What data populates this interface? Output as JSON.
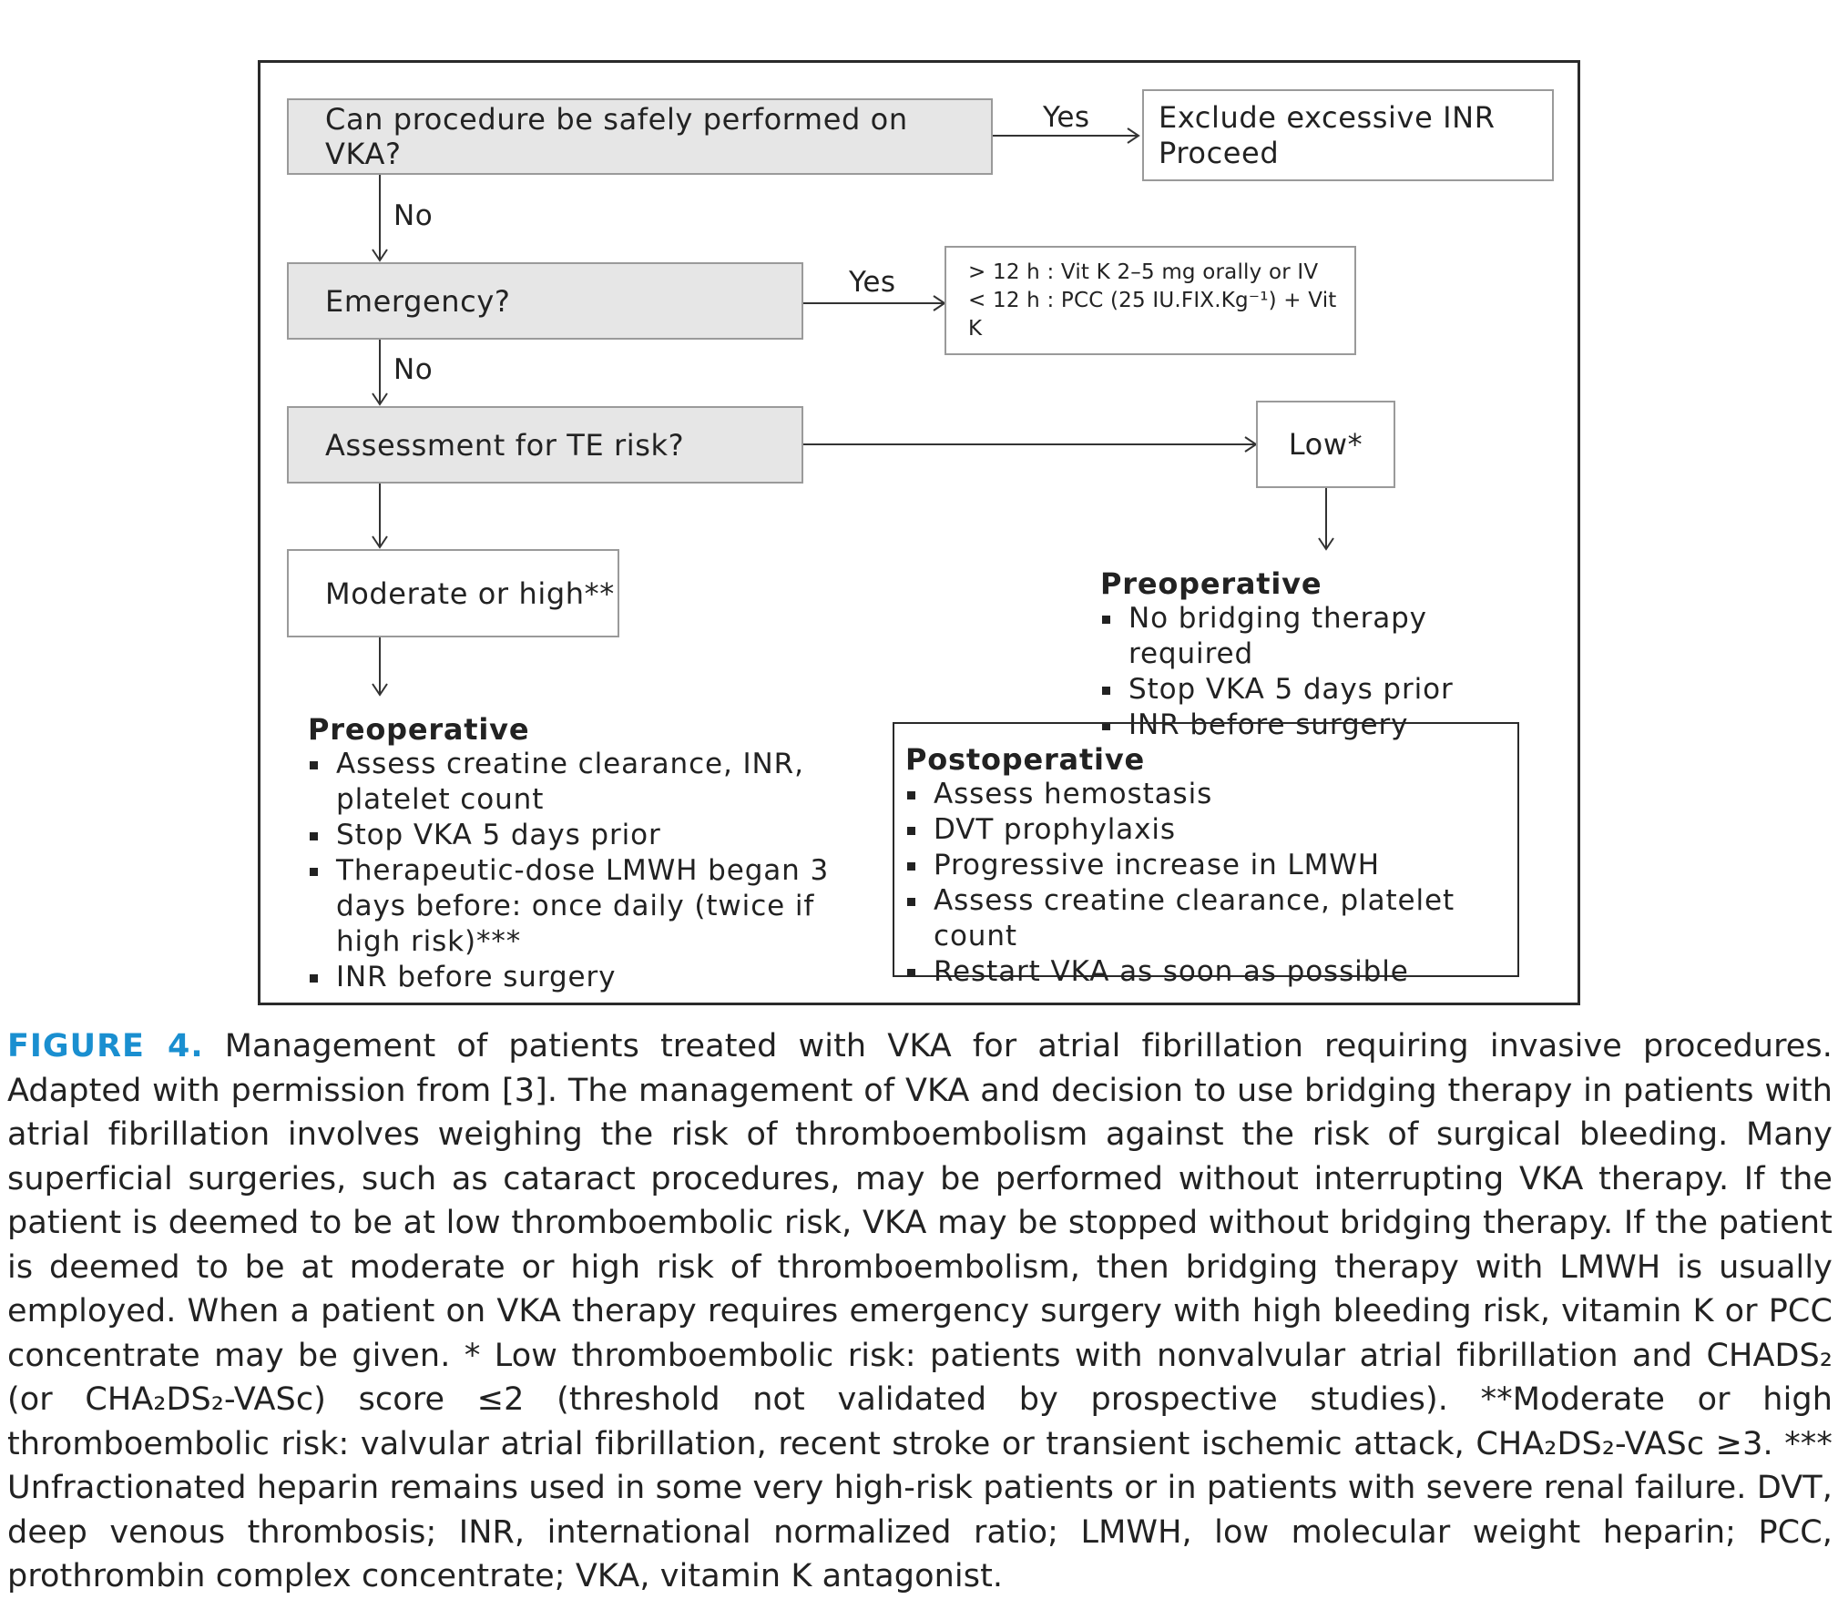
{
  "diagram": {
    "q1": "Can procedure be safely performed on VKA?",
    "q1_yes_label": "Yes",
    "q1_yes_box": [
      "Exclude excessive INR",
      "Proceed"
    ],
    "q1_no_label": "No",
    "q2": "Emergency?",
    "q2_yes_label": "Yes",
    "q2_yes_box": [
      "> 12 h : Vit K 2–5 mg orally or IV",
      "< 12 h : PCC (25 IU.FIX.Kg⁻¹) + Vit K"
    ],
    "q2_no_label": "No",
    "q3": "Assessment for TE risk?",
    "low": "Low*",
    "moderate": "Moderate or high**",
    "low_preop": {
      "title": "Preoperative",
      "items": [
        "No bridging therapy required",
        "Stop VKA 5 days prior",
        "INR before surgery"
      ]
    },
    "mod_preop": {
      "title": "Preoperative",
      "items": [
        "Assess creatine clearance, INR, platelet count",
        "Stop VKA 5 days prior",
        "Therapeutic-dose LMWH began 3 days before: once daily (twice if high risk)***",
        "INR before surgery"
      ]
    },
    "postop": {
      "title": "Postoperative",
      "items": [
        "Assess hemostasis",
        "DVT prophylaxis",
        "Progressive increase in LMWH",
        "Assess creatine clearance, platelet count",
        "Restart VKA as soon as possible"
      ]
    }
  },
  "caption": {
    "label": "FIGURE 4.",
    "text": "Management of patients treated with VKA for atrial fibrillation requiring invasive procedures. Adapted with permission from [3]. The management of VKA and decision to use bridging therapy in patients with atrial fibrillation involves weighing the risk of thromboembolism against the risk of surgical bleeding. Many superficial surgeries, such as cataract procedures, may be performed without interrupting VKA therapy. If the patient is deemed to be at low thromboembolic risk, VKA may be stopped without bridging therapy. If the patient is deemed to be at moderate or high risk of thromboembolism, then bridging therapy with LMWH is usually employed. When a patient on VKA therapy requires emergency surgery with high bleeding risk, vitamin K or PCC concentrate may be given. * Low thromboembolic risk: patients with nonvalvular atrial fibrillation and CHADS₂ (or CHA₂DS₂-VASc) score ≤2 (threshold not validated by prospective studies). **Moderate or high thromboembolic risk: valvular atrial fibrillation, recent stroke or transient ischemic attack, CHA₂DS₂-VASc ≥3. *** Unfractionated heparin remains used in some very high-risk patients or in patients with severe renal failure. DVT, deep venous thrombosis; INR, international normalized ratio; LMWH, low molecular weight heparin; PCC, prothrombin complex concentrate; VKA, vitamin K antagonist."
  }
}
